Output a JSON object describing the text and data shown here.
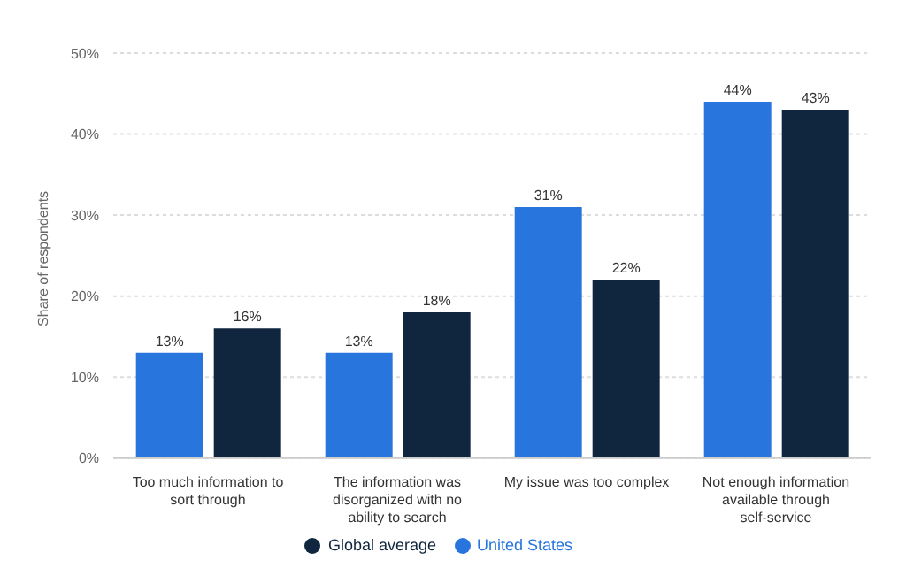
{
  "chart_data": {
    "type": "bar",
    "ylabel": "Share of respondents",
    "categories": [
      "Too much information to sort through",
      "The information was disorganized with no ability to search",
      "My issue was too complex",
      "Not enough information available through self-service"
    ],
    "series": [
      {
        "name": "United States",
        "color": "#2876dd",
        "values": [
          13,
          13,
          31,
          44
        ],
        "value_labels": [
          "13%",
          "13%",
          "31%",
          "44%"
        ]
      },
      {
        "name": "Global average",
        "color": "#10263f",
        "values": [
          16,
          18,
          22,
          43
        ],
        "value_labels": [
          "16%",
          "18%",
          "22%",
          "43%"
        ]
      }
    ],
    "ylim": [
      0,
      50
    ],
    "yticks": [
      {
        "value": 0,
        "label": "0%"
      },
      {
        "value": 10,
        "label": "10%"
      },
      {
        "value": 20,
        "label": "20%"
      },
      {
        "value": 30,
        "label": "30%"
      },
      {
        "value": 40,
        "label": "40%"
      },
      {
        "value": 50,
        "label": "50%"
      }
    ],
    "grid": "y",
    "legend": "bottom"
  }
}
